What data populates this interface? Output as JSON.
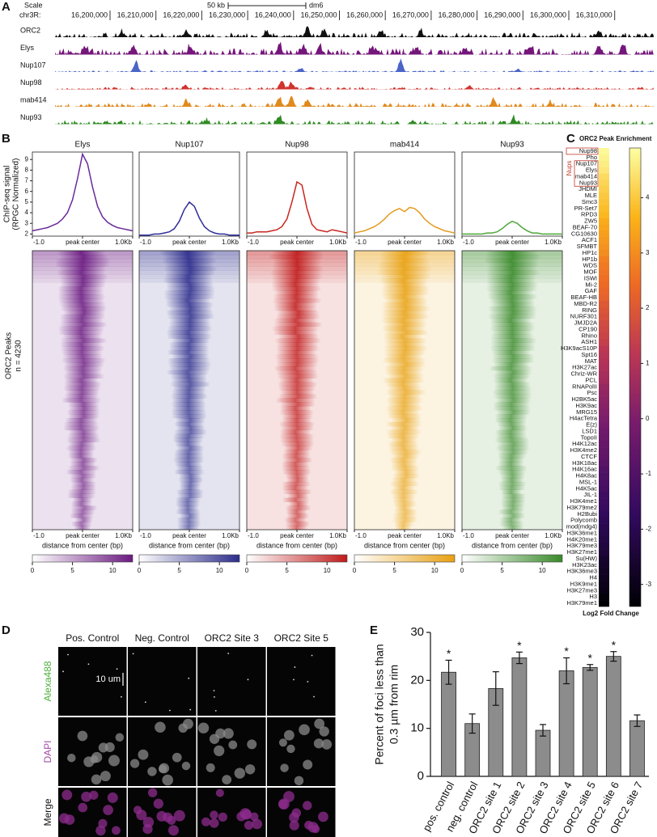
{
  "figure": {
    "panel_labels": [
      "A",
      "B",
      "C",
      "D",
      "E"
    ],
    "tracks": {
      "scale": "Scale",
      "chrom": "chr3R:",
      "scale_bar": "50 kb",
      "assembly": "dm6",
      "coordinates": [
        "16,200,000",
        "16,210,000",
        "16,220,000",
        "16,230,000",
        "16,240,000",
        "16,250,000",
        "16,260,000",
        "16,270,000",
        "16,280,000",
        "16,290,000",
        "16,300,000",
        "16,310,000"
      ],
      "names": [
        "ORC2",
        "Elys",
        "Nup107",
        "Nup98",
        "mab414",
        "Nup93"
      ],
      "colors": [
        "#111111",
        "#74167a",
        "#4a64c8",
        "#d2332e",
        "#e08a1e",
        "#2e8a22"
      ]
    },
    "microscopy": {
      "columns": [
        "Pos. Control",
        "Neg. Control",
        "ORC2 Site 3",
        "ORC2 Site 5"
      ],
      "rows": [
        "Alexa488",
        "DAPI",
        "Merge"
      ],
      "row_colors": [
        "#4caf3a",
        "#a34aa8",
        "#111111"
      ],
      "scale_bar": "10 um"
    }
  },
  "chart_data": [
    {
      "type": "profile",
      "ylabel": [
        "ChIP-seq signal",
        "(RPGC Normalized)"
      ],
      "x": [
        -1.0,
        -0.9,
        -0.8,
        -0.7,
        -0.6,
        -0.5,
        -0.4,
        -0.3,
        -0.2,
        -0.1,
        0.0,
        0.1,
        0.2,
        0.3,
        0.4,
        0.5,
        0.6,
        0.7,
        0.8,
        0.9,
        1.0
      ],
      "xlim": [
        -1.0,
        1.0
      ],
      "xticks": [
        {
          "value": -1.0,
          "label": "-1.0"
        },
        {
          "value": 0,
          "label": "peak center"
        },
        {
          "value": 1.0,
          "label": "1.0Kb"
        }
      ],
      "ylim": [
        1.8,
        9.7
      ],
      "yticks": [
        2,
        3,
        4,
        5,
        6,
        7,
        8,
        9
      ],
      "series": [
        {
          "name": "Elys",
          "color": "#6a2a9a",
          "values": [
            2.3,
            2.4,
            2.5,
            2.6,
            2.8,
            3.0,
            3.4,
            4.0,
            5.2,
            7.2,
            9.5,
            8.6,
            6.4,
            4.6,
            3.6,
            3.1,
            2.8,
            2.6,
            2.5,
            2.4,
            2.3
          ]
        },
        {
          "name": "Nup107",
          "color": "#2e2e9a",
          "values": [
            1.9,
            1.9,
            1.9,
            2.0,
            2.0,
            2.1,
            2.2,
            2.5,
            3.2,
            4.3,
            5.0,
            4.6,
            3.5,
            2.7,
            2.3,
            2.1,
            2.0,
            2.0,
            1.9,
            1.9,
            1.9
          ]
        },
        {
          "name": "Nup98",
          "color": "#c8261e",
          "values": [
            2.1,
            2.1,
            2.2,
            2.2,
            2.2,
            2.3,
            2.4,
            2.7,
            3.4,
            5.0,
            6.9,
            6.6,
            4.4,
            2.9,
            2.4,
            2.3,
            2.2,
            2.4,
            2.3,
            2.2,
            2.1
          ]
        },
        {
          "name": "mab414",
          "color": "#e39a1c",
          "values": [
            2.1,
            2.2,
            2.3,
            2.5,
            2.7,
            3.0,
            3.4,
            3.9,
            4.2,
            4.4,
            4.1,
            4.5,
            4.4,
            4.0,
            3.4,
            3.0,
            2.7,
            2.5,
            2.3,
            2.2,
            2.1
          ]
        },
        {
          "name": "Nup93",
          "color": "#4ea83a",
          "values": [
            2.0,
            2.0,
            2.0,
            2.0,
            2.0,
            2.1,
            2.1,
            2.2,
            2.5,
            2.9,
            3.2,
            3.0,
            2.6,
            2.3,
            2.1,
            2.1,
            2.0,
            2.0,
            2.0,
            2.0,
            2.0
          ]
        }
      ]
    },
    {
      "type": "heatmap",
      "ylabel": "ORC2 Peaks",
      "count_label": "n = 4230",
      "xlabel": "distance from center (bp)",
      "colors": [
        "#6a1a80",
        "#2c2c8c",
        "#c01a1a",
        "#e8a010",
        "#3a8a2a"
      ],
      "clim": [
        0,
        12.5
      ],
      "cticks": [
        0,
        5,
        10
      ]
    },
    {
      "type": "heatmap-column",
      "title": "ORC2 Peak Enrichment",
      "group_label": "Nups",
      "clabel": "Log2 Fold Change",
      "categories": [
        "Nup98",
        "Pho",
        "Nup107",
        "Elys",
        "mab414",
        "Nup93",
        "JHDMI",
        "MLE",
        "Smc3",
        "PR-Set7",
        "RPD3",
        "ZW5",
        "BEAF-70",
        "CG10630",
        "ACF1",
        "SFMBT",
        "HP1c",
        "HP1b",
        "WDS",
        "MOF",
        "ISWI",
        "Mi-2",
        "GAF",
        "BEAF-HB",
        "MBD-R2",
        "RING",
        "NURF301",
        "JMJD2A",
        "CP190",
        "Rhino",
        "ASH1",
        "H3K9acS10P",
        "Spt16",
        "MAT",
        "H3K27ac",
        "Chriz-WR",
        "PCL",
        "RNAPolII",
        "Psc",
        "H2BK5ac",
        "H3K9ac",
        "MRG15",
        "H4acTetra",
        "E(z)",
        "LSD1",
        "TopoII",
        "H4K12ac",
        "H3K4me2",
        "CTCF",
        "H3K18ac",
        "H4K16ac",
        "H4K8ac",
        "MSL-1",
        "H4K5ac",
        "JIL-1",
        "H3K4me1",
        "H3K79me2",
        "H2Bubi",
        "Polycomb",
        "mod(mdg4)",
        "H3K36me1",
        "H4K20me1",
        "H3K79me3",
        "H3K27me1",
        "Su(HW)",
        "H3K23ac",
        "H3K36me3",
        "H4",
        "H3K9me1",
        "H3K27me3",
        "H3",
        "H3K79me1"
      ],
      "values": [
        4.8,
        4.7,
        4.6,
        4.5,
        4.3,
        4.2,
        4.1,
        4.0,
        3.9,
        3.8,
        3.7,
        3.5,
        3.4,
        3.3,
        3.2,
        3.1,
        3.0,
        2.8,
        2.7,
        2.6,
        2.5,
        2.4,
        2.3,
        2.2,
        2.0,
        1.9,
        1.8,
        1.7,
        1.6,
        1.5,
        1.4,
        1.2,
        1.1,
        1.0,
        0.9,
        0.8,
        0.7,
        0.5,
        0.4,
        0.3,
        0.2,
        0.1,
        0.0,
        -0.1,
        -0.3,
        -0.4,
        -0.5,
        -0.6,
        -0.7,
        -0.8,
        -1.0,
        -1.1,
        -1.2,
        -1.3,
        -1.4,
        -1.5,
        -1.6,
        -1.8,
        -1.9,
        -2.0,
        -2.1,
        -2.2,
        -2.3,
        -2.4,
        -2.6,
        -2.7,
        -2.8,
        -2.9,
        -3.0,
        -3.1,
        -3.3,
        -3.4
      ],
      "clim": [
        -3.4,
        4.9
      ],
      "cticks": [
        -3,
        -2,
        -1,
        0,
        1,
        2,
        3,
        4
      ]
    },
    {
      "type": "bar",
      "ylabel": [
        "Percent of foci less than",
        "0.3 µm from rim"
      ],
      "categories": [
        "pos. control",
        "neg. control",
        "ORC2 site 1",
        "ORC2 site 2",
        "ORC2 site 3",
        "ORC2 site 4",
        "ORC2 site 5",
        "ORC2 site 6",
        "ORC2 site 7"
      ],
      "values": [
        21.7,
        11.0,
        18.3,
        24.7,
        9.6,
        22.0,
        22.7,
        25.0,
        11.6
      ],
      "errors": [
        2.5,
        2.0,
        3.5,
        1.2,
        1.2,
        2.7,
        0.6,
        1.0,
        1.2
      ],
      "significance": [
        "*",
        null,
        null,
        "*",
        null,
        "*",
        "*",
        "*",
        null
      ],
      "color": "#8c8c8c",
      "ylim": [
        0,
        30
      ],
      "yticks": [
        0,
        10,
        20,
        30
      ]
    }
  ]
}
